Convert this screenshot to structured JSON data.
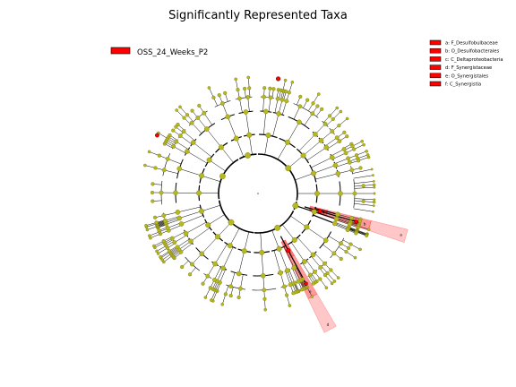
{
  "title": "Significantly Represented Taxa",
  "class_legend": {
    "label": "OSS_24_Weeks_P2",
    "color": "#ff0000"
  },
  "colors": {
    "node": "#b5b81f",
    "node_stroke": "#7a7a10",
    "highlight": "#ff0000",
    "edge": "#000000"
  },
  "clade_legend": [
    {
      "letter": "a",
      "name": "F_Desulfobulbaceae",
      "text": "a: F_Desulfobulbaceae"
    },
    {
      "letter": "b",
      "name": "O_Desulfobacterales",
      "text": "b: O_Desulfobacterales"
    },
    {
      "letter": "c",
      "name": "C_Deltaproteobacteria",
      "text": "c: C_Deltaproteobacteria"
    },
    {
      "letter": "d",
      "name": "F_Synergistaceae",
      "text": "d: F_Synergistaceae"
    },
    {
      "letter": "e",
      "name": "O_Synergistales",
      "text": "e: O_Synergistales"
    },
    {
      "letter": "f",
      "name": "C_Synergistia",
      "text": "f: C_Synergistia"
    }
  ],
  "highlighted_clades": [
    {
      "letters": [
        "c",
        "b",
        "a"
      ],
      "color": "#ff0000"
    },
    {
      "letters": [
        "f",
        "e",
        "d"
      ],
      "color": "#ff0000"
    }
  ]
}
